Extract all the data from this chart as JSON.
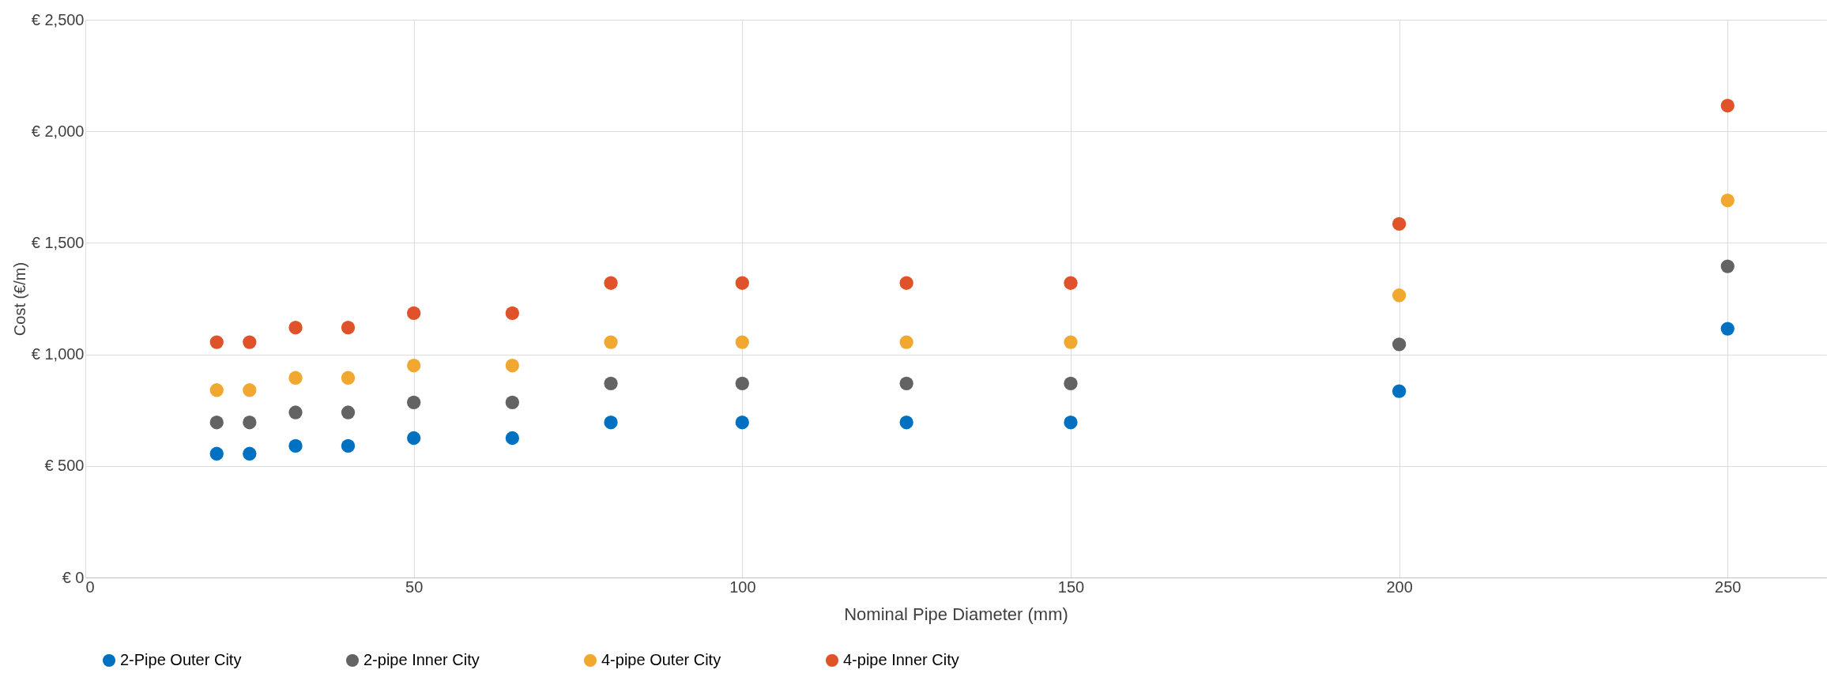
{
  "chart_data": {
    "type": "scatter",
    "xlabel": "Nominal Pipe Diameter (mm)",
    "ylabel": "Cost (€/m)",
    "x": [
      20,
      25,
      32,
      40,
      50,
      65,
      80,
      100,
      125,
      150,
      200,
      250
    ],
    "series": [
      {
        "name": "2-Pipe Outer City",
        "color": "#0070c0",
        "values": [
          555,
          555,
          590,
          590,
          625,
          625,
          695,
          695,
          695,
          695,
          835,
          1115
        ]
      },
      {
        "name": "2-pipe Inner City",
        "color": "#636363",
        "values": [
          695,
          695,
          740,
          740,
          785,
          785,
          870,
          870,
          870,
          870,
          1045,
          1395
        ]
      },
      {
        "name": "4-pipe Outer City",
        "color": "#f0a830",
        "values": [
          840,
          840,
          895,
          895,
          950,
          950,
          1055,
          1055,
          1055,
          1055,
          1265,
          1690
        ]
      },
      {
        "name": "4-pipe Inner City",
        "color": "#e0522a",
        "values": [
          1055,
          1055,
          1120,
          1120,
          1185,
          1185,
          1320,
          1320,
          1320,
          1320,
          1585,
          2115
        ]
      }
    ],
    "xlim": [
      0,
      265
    ],
    "xticks": [
      0,
      50,
      100,
      150,
      200,
      250
    ],
    "ylim": [
      0,
      2500
    ],
    "yticks": [
      {
        "value": 0,
        "label": "€ 0"
      },
      {
        "value": 500,
        "label": "€ 500"
      },
      {
        "value": 1000,
        "label": "€ 1,000"
      },
      {
        "value": 1500,
        "label": "€ 1,500"
      },
      {
        "value": 2000,
        "label": "€ 2,000"
      },
      {
        "value": 2500,
        "label": "€ 2,500"
      }
    ],
    "grid": true,
    "legend": "bottom",
    "marker": "circle"
  }
}
